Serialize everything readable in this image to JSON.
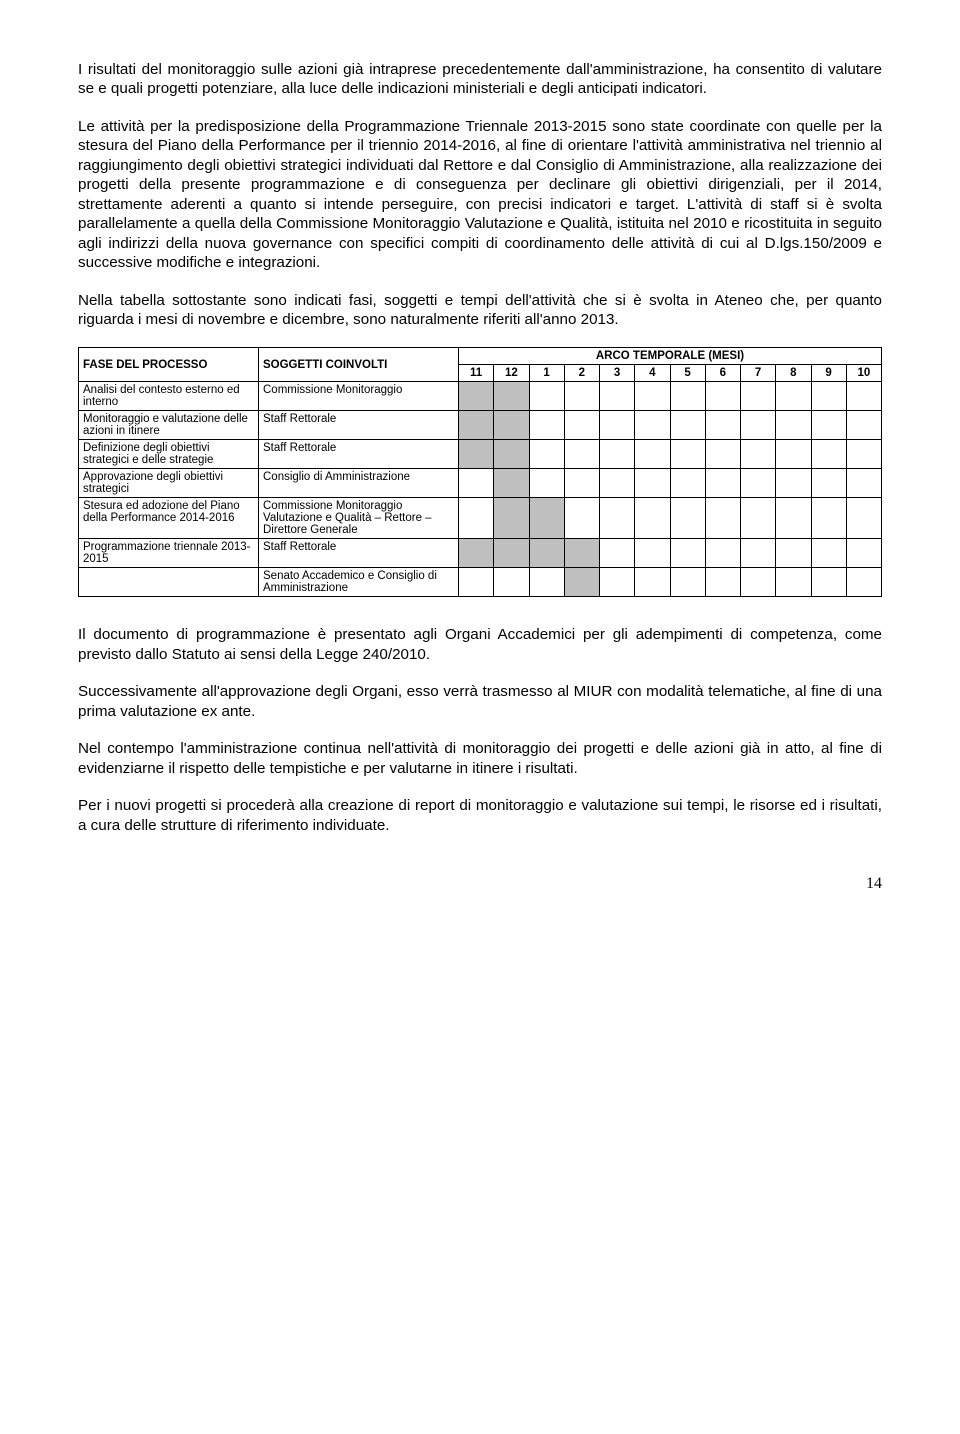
{
  "paragraphs": {
    "p1": "I risultati del monitoraggio sulle azioni già intraprese precedentemente dall'amministrazione, ha consentito di valutare se e quali progetti potenziare, alla luce delle indicazioni ministeriali e degli anticipati indicatori.",
    "p2": "Le attività per la predisposizione della Programmazione Triennale 2013-2015 sono state coordinate con quelle per la stesura del Piano della Performance per il triennio 2014-2016, al fine di orientare l'attività amministrativa nel triennio al raggiungimento degli obiettivi strategici individuati dal Rettore e dal Consiglio di Amministrazione, alla realizzazione dei progetti della presente programmazione e di conseguenza per declinare gli obiettivi dirigenziali, per il 2014, strettamente aderenti a quanto si intende perseguire, con precisi indicatori e target. L'attività di staff si è svolta parallelamente a quella della Commissione Monitoraggio Valutazione e Qualità, istituita nel 2010 e ricostituita in seguito agli indirizzi della nuova governance con specifici compiti di coordinamento delle attività di cui al D.lgs.150/2009 e successive modifiche e integrazioni.",
    "p3": "Nella tabella sottostante sono indicati fasi, soggetti e tempi dell'attività che si è svolta in Ateneo che, per quanto riguarda i mesi di novembre e dicembre, sono naturalmente riferiti all'anno 2013.",
    "p4": "Il documento di programmazione è presentato agli Organi Accademici per gli adempimenti di competenza, come previsto dallo Statuto ai sensi della Legge 240/2010.",
    "p5": "Successivamente all'approvazione degli Organi, esso verrà trasmesso al MIUR con modalità telematiche, al fine di una prima valutazione ex ante.",
    "p6": "Nel contempo l'amministrazione continua nell'attività di monitoraggio dei progetti e delle azioni già in atto, al fine di evidenziarne il rispetto delle tempistiche e per valutarne in itinere i risultati.",
    "p7": "Per i nuovi progetti si procederà alla creazione di report di monitoraggio e valutazione sui tempi, le risorse ed i risultati, a cura delle strutture di riferimento individuate."
  },
  "table": {
    "headers": {
      "phase": "FASE DEL PROCESSO",
      "subjects": "SOGGETTI COINVOLTI",
      "timeline": "ARCO TEMPORALE (MESI)"
    },
    "months": [
      "11",
      "12",
      "1",
      "2",
      "3",
      "4",
      "5",
      "6",
      "7",
      "8",
      "9",
      "10"
    ],
    "shaded_color": "#bfbfbf",
    "border_color": "#000000",
    "font_size": 11.5,
    "rows": [
      {
        "phase": "Analisi del contesto esterno ed interno",
        "subject": "Commissione Monitoraggio",
        "shaded": [
          true,
          true,
          false,
          false,
          false,
          false,
          false,
          false,
          false,
          false,
          false,
          false
        ]
      },
      {
        "phase": "Monitoraggio e valutazione delle azioni in itinere",
        "subject": "Staff Rettorale",
        "shaded": [
          true,
          true,
          false,
          false,
          false,
          false,
          false,
          false,
          false,
          false,
          false,
          false
        ]
      },
      {
        "phase": "Definizione degli obiettivi strategici e delle strategie",
        "subject": "Staff Rettorale",
        "shaded": [
          true,
          true,
          false,
          false,
          false,
          false,
          false,
          false,
          false,
          false,
          false,
          false
        ]
      },
      {
        "phase": "Approvazione degli obiettivi strategici",
        "subject": "Consiglio di Amministrazione",
        "shaded": [
          false,
          true,
          false,
          false,
          false,
          false,
          false,
          false,
          false,
          false,
          false,
          false
        ]
      },
      {
        "phase": "Stesura ed adozione del Piano della Performance 2014-2016",
        "subject": "Commissione Monitoraggio Valutazione e Qualità – Rettore – Direttore Generale",
        "shaded": [
          false,
          true,
          true,
          false,
          false,
          false,
          false,
          false,
          false,
          false,
          false,
          false
        ]
      },
      {
        "phase": "Programmazione triennale 2013-2015",
        "subject": "Staff Rettorale",
        "shaded": [
          true,
          true,
          true,
          true,
          false,
          false,
          false,
          false,
          false,
          false,
          false,
          false
        ]
      },
      {
        "phase": "",
        "subject": "Senato Accademico e Consiglio di Amministrazione",
        "shaded": [
          false,
          false,
          false,
          true,
          false,
          false,
          false,
          false,
          false,
          false,
          false,
          false
        ]
      }
    ]
  },
  "page_number": "14"
}
